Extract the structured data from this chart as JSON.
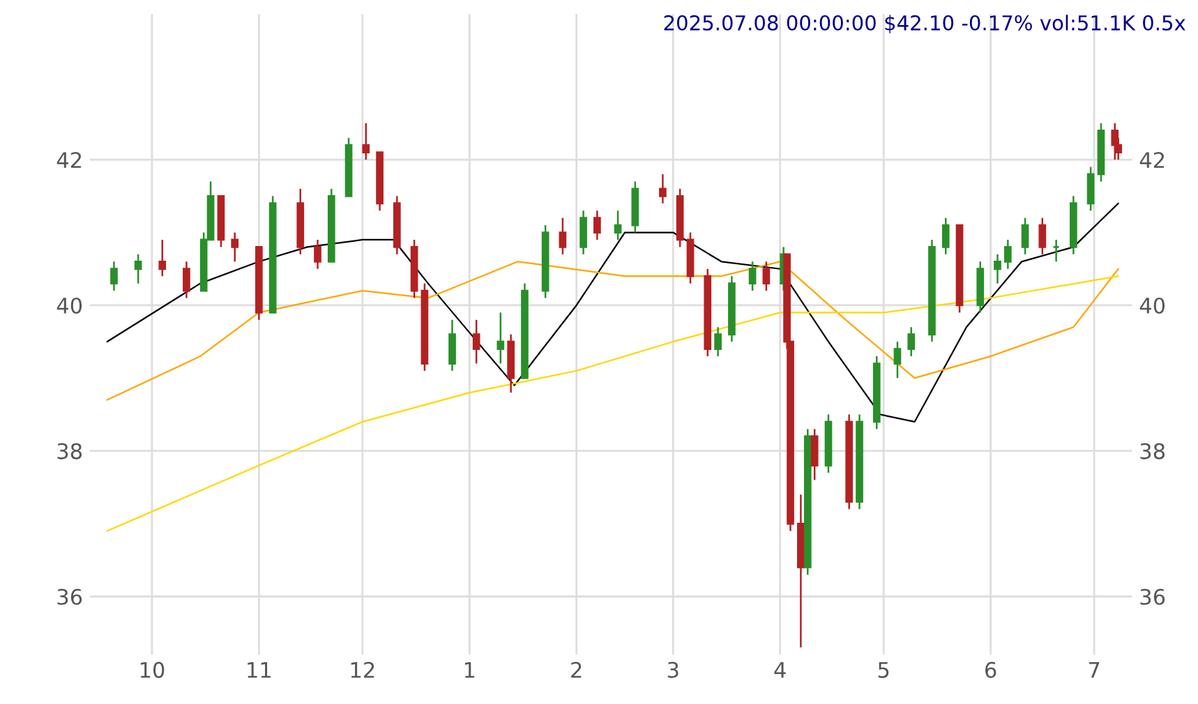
{
  "chart_data": {
    "type": "candlestick",
    "title": "2025.07.08 00:00:00 $42.10 -0.17% vol:51.1K 0.5x",
    "x": [
      "2024-09-20",
      "2024-09-27",
      "2024-10-04",
      "2024-10-11",
      "2024-10-16",
      "2024-10-18",
      "2024-10-21",
      "2024-10-25",
      "2024-11-01",
      "2024-11-05",
      "2024-11-13",
      "2024-11-18",
      "2024-11-22",
      "2024-11-27",
      "2024-12-02",
      "2024-12-06",
      "2024-12-11",
      "2024-12-16",
      "2024-12-19",
      "2024-12-27",
      "2025-01-03",
      "2025-01-10",
      "2025-01-13",
      "2025-01-17",
      "2025-01-23",
      "2025-01-28",
      "2025-02-03",
      "2025-02-07",
      "2025-02-13",
      "2025-02-18",
      "2025-02-26",
      "2025-03-03",
      "2025-03-06",
      "2025-03-11",
      "2025-03-14",
      "2025-03-18",
      "2025-03-24",
      "2025-03-28",
      "2025-04-02",
      "2025-04-03",
      "2025-04-04",
      "2025-04-07",
      "2025-04-09",
      "2025-04-11",
      "2025-04-15",
      "2025-04-21",
      "2025-04-24",
      "2025-04-29",
      "2025-05-05",
      "2025-05-09",
      "2025-05-15",
      "2025-05-19",
      "2025-05-23",
      "2025-05-29",
      "2025-06-03",
      "2025-06-06",
      "2025-06-11",
      "2025-06-16",
      "2025-06-20",
      "2025-06-25",
      "2025-06-30",
      "2025-07-03",
      "2025-07-07",
      "2025-07-08"
    ],
    "ohlc": [
      [
        40.3,
        40.6,
        40.2,
        40.5
      ],
      [
        40.5,
        40.7,
        40.3,
        40.6
      ],
      [
        40.6,
        40.9,
        40.4,
        40.5
      ],
      [
        40.5,
        40.6,
        40.1,
        40.2
      ],
      [
        40.2,
        41.0,
        40.2,
        40.9
      ],
      [
        40.9,
        41.7,
        40.9,
        41.5
      ],
      [
        41.5,
        41.5,
        40.8,
        40.9
      ],
      [
        40.9,
        41.0,
        40.6,
        40.8
      ],
      [
        40.8,
        40.8,
        39.8,
        39.9
      ],
      [
        39.9,
        41.5,
        39.9,
        41.4
      ],
      [
        41.4,
        41.6,
        40.7,
        40.8
      ],
      [
        40.8,
        40.9,
        40.5,
        40.6
      ],
      [
        40.6,
        41.6,
        40.6,
        41.5
      ],
      [
        41.5,
        42.3,
        41.5,
        42.2
      ],
      [
        42.2,
        42.5,
        42.0,
        42.1
      ],
      [
        42.1,
        42.1,
        41.3,
        41.4
      ],
      [
        41.4,
        41.5,
        40.7,
        40.8
      ],
      [
        40.8,
        40.9,
        40.1,
        40.2
      ],
      [
        40.2,
        40.3,
        39.1,
        39.2
      ],
      [
        39.2,
        39.8,
        39.1,
        39.6
      ],
      [
        39.6,
        39.8,
        39.2,
        39.4
      ],
      [
        39.4,
        39.9,
        39.2,
        39.5
      ],
      [
        39.5,
        39.6,
        38.8,
        39.0
      ],
      [
        39.0,
        40.3,
        39.0,
        40.2
      ],
      [
        40.2,
        41.1,
        40.1,
        41.0
      ],
      [
        41.0,
        41.2,
        40.7,
        40.8
      ],
      [
        40.8,
        41.3,
        40.7,
        41.2
      ],
      [
        41.2,
        41.3,
        40.9,
        41.0
      ],
      [
        41.0,
        41.3,
        40.9,
        41.1
      ],
      [
        41.1,
        41.7,
        41.0,
        41.6
      ],
      [
        41.6,
        41.8,
        41.4,
        41.5
      ],
      [
        41.5,
        41.6,
        40.8,
        40.9
      ],
      [
        40.9,
        41.0,
        40.3,
        40.4
      ],
      [
        40.4,
        40.5,
        39.3,
        39.4
      ],
      [
        39.4,
        39.7,
        39.3,
        39.6
      ],
      [
        39.6,
        40.4,
        39.5,
        40.3
      ],
      [
        40.3,
        40.6,
        40.2,
        40.5
      ],
      [
        40.5,
        40.6,
        40.2,
        40.3
      ],
      [
        40.3,
        40.8,
        40.2,
        40.7
      ],
      [
        40.7,
        40.7,
        39.4,
        39.5
      ],
      [
        39.5,
        39.5,
        36.9,
        37.0
      ],
      [
        37.0,
        37.4,
        35.3,
        36.4
      ],
      [
        36.4,
        38.3,
        36.3,
        38.2
      ],
      [
        38.2,
        38.3,
        37.6,
        37.8
      ],
      [
        37.8,
        38.5,
        37.7,
        38.4
      ],
      [
        38.4,
        38.5,
        37.2,
        37.3
      ],
      [
        37.3,
        38.5,
        37.2,
        38.4
      ],
      [
        38.4,
        39.3,
        38.3,
        39.2
      ],
      [
        39.2,
        39.5,
        39.0,
        39.4
      ],
      [
        39.4,
        39.7,
        39.3,
        39.6
      ],
      [
        39.6,
        40.9,
        39.5,
        40.8
      ],
      [
        40.8,
        41.2,
        40.7,
        41.1
      ],
      [
        41.1,
        41.1,
        39.9,
        40.0
      ],
      [
        40.0,
        40.6,
        39.9,
        40.5
      ],
      [
        40.5,
        40.7,
        40.3,
        40.6
      ],
      [
        40.6,
        40.9,
        40.5,
        40.8
      ],
      [
        40.8,
        41.2,
        40.7,
        41.1
      ],
      [
        41.1,
        41.2,
        40.7,
        40.8
      ],
      [
        40.8,
        40.9,
        40.6,
        40.8
      ],
      [
        40.8,
        41.5,
        40.7,
        41.4
      ],
      [
        41.4,
        41.9,
        41.3,
        41.8
      ],
      [
        41.8,
        42.5,
        41.7,
        42.4
      ],
      [
        42.4,
        42.5,
        42.0,
        42.2
      ],
      [
        42.2,
        42.3,
        42.0,
        42.1
      ]
    ],
    "colors": [
      "#2a8f2a",
      "#2a8f2a",
      "#b22222",
      "#b22222",
      "#2a8f2a",
      "#2a8f2a",
      "#b22222",
      "#b22222",
      "#b22222",
      "#2a8f2a",
      "#b22222",
      "#b22222",
      "#2a8f2a",
      "#2a8f2a",
      "#b22222",
      "#b22222",
      "#b22222",
      "#b22222",
      "#b22222",
      "#2a8f2a",
      "#b22222",
      "#2a8f2a",
      "#b22222",
      "#2a8f2a",
      "#2a8f2a",
      "#b22222",
      "#2a8f2a",
      "#b22222",
      "#2a8f2a",
      "#2a8f2a",
      "#b22222",
      "#b22222",
      "#b22222",
      "#b22222",
      "#2a8f2a",
      "#2a8f2a",
      "#2a8f2a",
      "#b22222",
      "#2a8f2a",
      "#b22222",
      "#b22222",
      "#b22222",
      "#2a8f2a",
      "#b22222",
      "#2a8f2a",
      "#b22222",
      "#2a8f2a",
      "#2a8f2a",
      "#2a8f2a",
      "#2a8f2a",
      "#2a8f2a",
      "#2a8f2a",
      "#b22222",
      "#2a8f2a",
      "#2a8f2a",
      "#2a8f2a",
      "#2a8f2a",
      "#b22222",
      "#2a8f2a",
      "#2a8f2a",
      "#2a8f2a",
      "#2a8f2a",
      "#b22222",
      "#b22222"
    ],
    "series": [
      {
        "type": "line",
        "color": "#000000",
        "x": [
          "2024-09-18",
          "2024-10-15",
          "2024-11-01",
          "2024-11-15",
          "2024-12-01",
          "2024-12-10",
          "2024-12-20",
          "2025-01-05",
          "2025-01-14",
          "2025-02-01",
          "2025-02-15",
          "2025-03-01",
          "2025-03-15",
          "2025-04-01",
          "2025-04-15",
          "2025-04-30",
          "2025-05-10",
          "2025-05-25",
          "2025-06-10",
          "2025-06-25",
          "2025-07-08"
        ],
        "values": [
          39.5,
          40.3,
          40.6,
          40.8,
          40.9,
          40.9,
          40.3,
          39.4,
          38.9,
          40.0,
          41.0,
          41.0,
          40.6,
          40.5,
          39.5,
          38.5,
          38.4,
          39.7,
          40.6,
          40.8,
          41.4
        ]
      },
      {
        "type": "line",
        "color": "#ffa500",
        "x": [
          "2024-09-18",
          "2024-10-15",
          "2024-11-01",
          "2024-12-01",
          "2024-12-20",
          "2025-01-15",
          "2025-02-15",
          "2025-03-15",
          "2025-04-01",
          "2025-04-20",
          "2025-05-10",
          "2025-06-01",
          "2025-06-25",
          "2025-07-08"
        ],
        "values": [
          38.7,
          39.3,
          39.9,
          40.2,
          40.1,
          40.6,
          40.4,
          40.4,
          40.6,
          39.8,
          39.0,
          39.3,
          39.7,
          40.5
        ]
      },
      {
        "type": "line",
        "color": "#ffd700",
        "x": [
          "2024-09-18",
          "2024-11-01",
          "2024-12-01",
          "2025-01-01",
          "2025-02-01",
          "2025-03-01",
          "2025-04-01",
          "2025-05-01",
          "2025-06-01",
          "2025-07-08"
        ],
        "values": [
          36.9,
          37.8,
          38.4,
          38.8,
          39.1,
          39.5,
          39.9,
          39.9,
          40.1,
          40.4
        ]
      }
    ],
    "xlim": [
      "2024-09-13",
      "2025-07-12"
    ],
    "xticks": [
      {
        "value": "2024-10-01",
        "label": "10"
      },
      {
        "value": "2024-11-01",
        "label": "11"
      },
      {
        "value": "2024-12-01",
        "label": "12"
      },
      {
        "value": "2025-01-01",
        "label": "1"
      },
      {
        "value": "2025-02-01",
        "label": "2"
      },
      {
        "value": "2025-03-01",
        "label": "3"
      },
      {
        "value": "2025-04-01",
        "label": "4"
      },
      {
        "value": "2025-05-01",
        "label": "5"
      },
      {
        "value": "2025-06-01",
        "label": "6"
      },
      {
        "value": "2025-07-01",
        "label": "7"
      }
    ],
    "ylim": [
      35.2,
      44.0
    ],
    "yticks": [
      36,
      38,
      40,
      42
    ],
    "y2lim": [
      35.2,
      44.0
    ],
    "y2ticks": [
      36,
      38,
      40,
      42
    ],
    "grid": true
  }
}
